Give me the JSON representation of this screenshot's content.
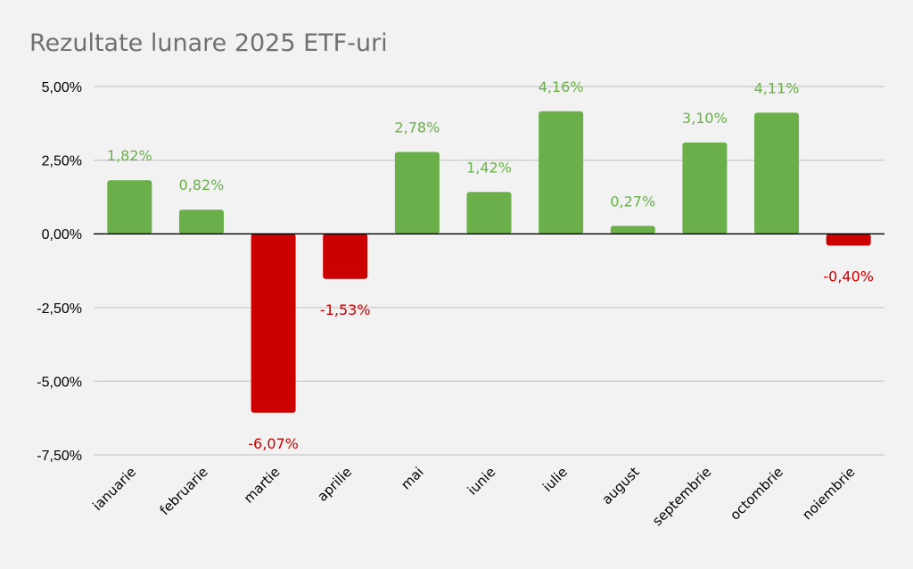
{
  "chart_data": {
    "type": "bar",
    "title": "Rezultate lunare 2025 ETF-uri",
    "xlabel": "",
    "ylabel": "",
    "ylim": [
      -7.5,
      5.0
    ],
    "yticks": [
      5.0,
      2.5,
      0.0,
      -2.5,
      -5.0,
      -7.5
    ],
    "ytick_labels": [
      "5,00%",
      "2,50%",
      "0,00%",
      "-2,50%",
      "-5,00%",
      "-7,50%"
    ],
    "categories": [
      "ianuarie",
      "februarie",
      "martie",
      "aprilie",
      "mai",
      "iunie",
      "iulie",
      "august",
      "septembrie",
      "octombrie",
      "noiembrie"
    ],
    "values": [
      1.82,
      0.82,
      -6.07,
      -1.53,
      2.78,
      1.42,
      4.16,
      0.27,
      3.1,
      4.11,
      -0.4
    ],
    "data_labels": [
      "1,82%",
      "0,82%",
      "-6,07%",
      "-1,53%",
      "2,78%",
      "1,42%",
      "4,16%",
      "0,27%",
      "3,10%",
      "4,11%",
      "-0,40%"
    ],
    "grid": true,
    "legend": "none",
    "colors": {
      "positive": "#6aaf49",
      "negative": "#cc0000",
      "positive_label": "#6aaf49",
      "negative_label": "#cc0000",
      "grid": "#c8c8c8",
      "axis": "#000000",
      "title": "#707070",
      "background": "#f2f2f2"
    }
  }
}
